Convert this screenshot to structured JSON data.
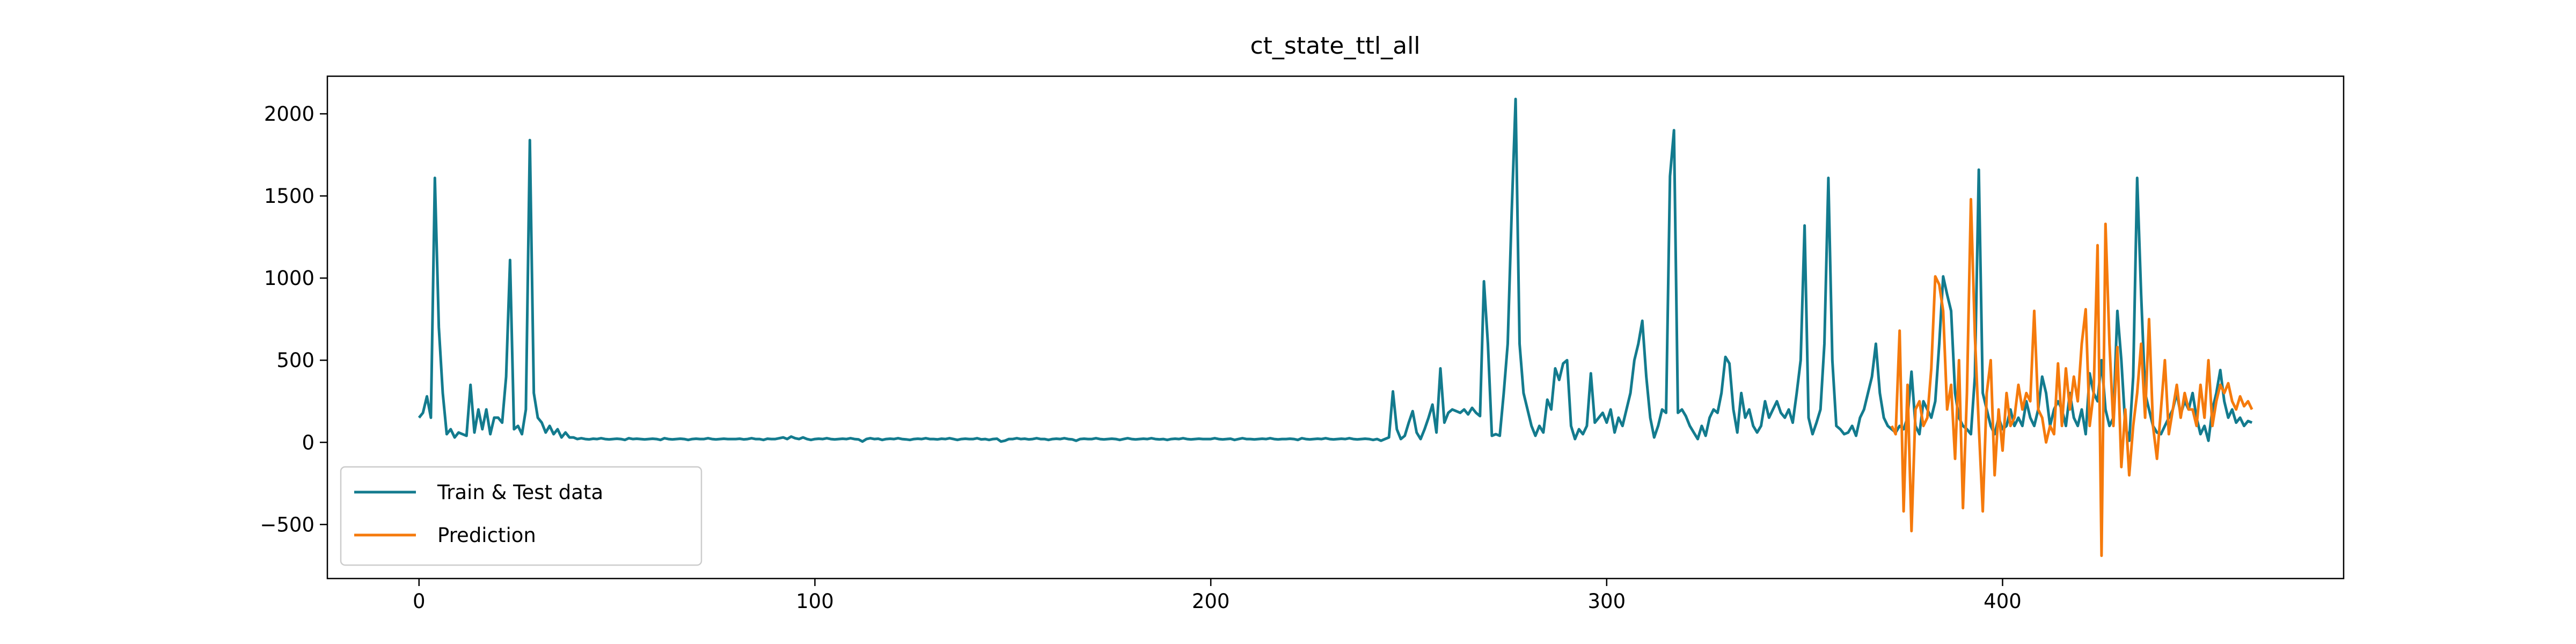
{
  "chart_data": {
    "type": "line",
    "title": "ct_state_ttl_all",
    "xlim": [
      -23.15,
      486.15
    ],
    "ylim": [
      -829,
      2229
    ],
    "xticks": [
      0,
      100,
      200,
      300,
      400
    ],
    "yticks": [
      {
        "value": -500,
        "label": "−500"
      },
      0,
      500,
      1000,
      1500,
      2000
    ],
    "legend": "lower left",
    "series": [
      {
        "name": "Train & Test data",
        "color": "#137b8e",
        "x": [
          0,
          1,
          2,
          3,
          4,
          5,
          6,
          7,
          8,
          9,
          10,
          11,
          12,
          13,
          14,
          15,
          16,
          17,
          18,
          19,
          20,
          21,
          22,
          23,
          24,
          25,
          26,
          27,
          28,
          29,
          30,
          31,
          32,
          33,
          34,
          35,
          36,
          37,
          38,
          39,
          40,
          41,
          42,
          43,
          44,
          45,
          46,
          47,
          48,
          49,
          50,
          51,
          52,
          53,
          54,
          55,
          56,
          57,
          58,
          59,
          60,
          61,
          62,
          63,
          64,
          65,
          66,
          67,
          68,
          69,
          70,
          71,
          72,
          73,
          74,
          75,
          76,
          77,
          78,
          79,
          80,
          81,
          82,
          83,
          84,
          85,
          86,
          87,
          88,
          89,
          90,
          91,
          92,
          93,
          94,
          95,
          96,
          97,
          98,
          99,
          100,
          101,
          102,
          103,
          104,
          105,
          106,
          107,
          108,
          109,
          110,
          111,
          112,
          113,
          114,
          115,
          116,
          117,
          118,
          119,
          120,
          121,
          122,
          123,
          124,
          125,
          126,
          127,
          128,
          129,
          130,
          131,
          132,
          133,
          134,
          135,
          136,
          137,
          138,
          139,
          140,
          141,
          142,
          143,
          144,
          145,
          146,
          147,
          148,
          149,
          150,
          151,
          152,
          153,
          154,
          155,
          156,
          157,
          158,
          159,
          160,
          161,
          162,
          163,
          164,
          165,
          166,
          167,
          168,
          169,
          170,
          171,
          172,
          173,
          174,
          175,
          176,
          177,
          178,
          179,
          180,
          181,
          182,
          183,
          184,
          185,
          186,
          187,
          188,
          189,
          190,
          191,
          192,
          193,
          194,
          195,
          196,
          197,
          198,
          199,
          200,
          201,
          202,
          203,
          204,
          205,
          206,
          207,
          208,
          209,
          210,
          211,
          212,
          213,
          214,
          215,
          216,
          217,
          218,
          219,
          220,
          221,
          222,
          223,
          224,
          225,
          226,
          227,
          228,
          229,
          230,
          231,
          232,
          233,
          234,
          235,
          236,
          237,
          238,
          239,
          240,
          241,
          242,
          243,
          244,
          245,
          246,
          247,
          248,
          249,
          250,
          251,
          252,
          253,
          254,
          255,
          256,
          257,
          258,
          259,
          260,
          261,
          262,
          263,
          264,
          265,
          266,
          267,
          268,
          269,
          270,
          271,
          272,
          273,
          274,
          275,
          276,
          277,
          278,
          279,
          280,
          281,
          282,
          283,
          284,
          285,
          286,
          287,
          288,
          289,
          290,
          291,
          292,
          293,
          294,
          295,
          296,
          297,
          298,
          299,
          300,
          301,
          302,
          303,
          304,
          305,
          306,
          307,
          308,
          309,
          310,
          311,
          312,
          313,
          314,
          315,
          316,
          317,
          318,
          319,
          320,
          321,
          322,
          323,
          324,
          325,
          326,
          327,
          328,
          329,
          330,
          331,
          332,
          333,
          334,
          335,
          336,
          337,
          338,
          339,
          340,
          341,
          342,
          343,
          344,
          345,
          346,
          347,
          348,
          349,
          350,
          351,
          352,
          353,
          354,
          355,
          356,
          357,
          358,
          359,
          360,
          361,
          362,
          363,
          364,
          365,
          366,
          367,
          368,
          369,
          370,
          371,
          372,
          373,
          374,
          375,
          376,
          377,
          378,
          379,
          380,
          381,
          382,
          383,
          384,
          385,
          386,
          387,
          388,
          389,
          390,
          391,
          392,
          393,
          394,
          395,
          396,
          397,
          398,
          399,
          400,
          401,
          402,
          403,
          404,
          405,
          406,
          407,
          408,
          409,
          410,
          411,
          412,
          413,
          414,
          415,
          416,
          417,
          418,
          419,
          420,
          421,
          422,
          423,
          424,
          425,
          426,
          427,
          428,
          429,
          430,
          431,
          432,
          433,
          434,
          435,
          436,
          437,
          438,
          439,
          440,
          441,
          442,
          443,
          444,
          445,
          446,
          447,
          448,
          449,
          450,
          451,
          452,
          453,
          454,
          455,
          456,
          457,
          458,
          459,
          460,
          461,
          462,
          463
        ],
        "values": [
          150,
          180,
          280,
          150,
          1610,
          700,
          300,
          50,
          80,
          30,
          60,
          50,
          40,
          350,
          60,
          200,
          80,
          200,
          50,
          150,
          150,
          120,
          400,
          1110,
          80,
          100,
          50,
          200,
          1840,
          300,
          150,
          120,
          60,
          100,
          50,
          80,
          30,
          60,
          30,
          30,
          20,
          25,
          20,
          18,
          22,
          20,
          25,
          20,
          18,
          20,
          22,
          20,
          15,
          25,
          20,
          22,
          20,
          18,
          20,
          22,
          20,
          15,
          25,
          20,
          18,
          20,
          22,
          20,
          15,
          20,
          22,
          20,
          20,
          25,
          20,
          18,
          20,
          22,
          20,
          20,
          20,
          22,
          18,
          20,
          25,
          20,
          20,
          15,
          22,
          20,
          20,
          25,
          30,
          20,
          35,
          25,
          20,
          30,
          20,
          15,
          20,
          22,
          20,
          25,
          20,
          18,
          20,
          22,
          20,
          25,
          20,
          18,
          5,
          20,
          25,
          20,
          22,
          15,
          20,
          22,
          20,
          25,
          20,
          18,
          15,
          20,
          22,
          20,
          25,
          20,
          20,
          18,
          22,
          20,
          25,
          20,
          15,
          20,
          22,
          20,
          20,
          25,
          18,
          20,
          15,
          20,
          22,
          5,
          10,
          20,
          20,
          25,
          20,
          22,
          18,
          20,
          25,
          20,
          20,
          15,
          20,
          22,
          20,
          25,
          20,
          18,
          10,
          20,
          22,
          20,
          20,
          25,
          20,
          18,
          20,
          22,
          20,
          15,
          20,
          25,
          20,
          18,
          20,
          22,
          20,
          25,
          20,
          18,
          20,
          15,
          20,
          22,
          20,
          25,
          20,
          18,
          20,
          22,
          20,
          20,
          20,
          25,
          20,
          18,
          20,
          22,
          15,
          20,
          25,
          20,
          20,
          18,
          20,
          22,
          20,
          25,
          20,
          18,
          20,
          20,
          22,
          20,
          15,
          25,
          20,
          18,
          20,
          22,
          20,
          25,
          20,
          18,
          20,
          22,
          20,
          25,
          20,
          18,
          20,
          22,
          20,
          15,
          20,
          10,
          20,
          30,
          310,
          80,
          20,
          40,
          120,
          190,
          60,
          20,
          80,
          150,
          230,
          60,
          450,
          120,
          180,
          200,
          190,
          180,
          200,
          170,
          210,
          180,
          160,
          980,
          600,
          40,
          50,
          40,
          300,
          600,
          1400,
          2090,
          600,
          300,
          200,
          100,
          40,
          100,
          60,
          260,
          200,
          450,
          380,
          480,
          500,
          100,
          20,
          80,
          50,
          100,
          420,
          120,
          150,
          180,
          120,
          200,
          60,
          150,
          100,
          200,
          300,
          500,
          600,
          740,
          400,
          150,
          30,
          100,
          200,
          180,
          1620,
          1900,
          180,
          200,
          160,
          100,
          60,
          20,
          100,
          40,
          150,
          200,
          180,
          300,
          520,
          480,
          200,
          60,
          300,
          150,
          200,
          100,
          60,
          100,
          250,
          150,
          200,
          250,
          180,
          150,
          200,
          120,
          300,
          500,
          1320,
          150,
          50,
          120,
          200,
          600,
          1610,
          500,
          100,
          80,
          50,
          60,
          100,
          40,
          150,
          200,
          300,
          400,
          600,
          300,
          150,
          100,
          80,
          60,
          100,
          80,
          150,
          430,
          100,
          50,
          250,
          200,
          150,
          250,
          600,
          1010,
          900,
          800,
          300,
          150,
          100,
          80,
          50,
          400,
          1660,
          300,
          200,
          100,
          50,
          150,
          80,
          100,
          200,
          100,
          150,
          100,
          250,
          150,
          100,
          200,
          400,
          300,
          100,
          200,
          250,
          200,
          100,
          300,
          150,
          100,
          200,
          50,
          420,
          300,
          250,
          500,
          200,
          100,
          150,
          800,
          500,
          100,
          10,
          400,
          1610,
          900,
          300,
          200,
          100,
          60,
          50,
          100,
          150,
          200,
          300,
          170,
          250,
          200,
          300,
          150,
          50,
          100,
          10,
          200,
          300,
          440,
          250,
          150,
          200,
          120,
          150,
          100,
          130,
          120
        ]
      },
      {
        "name": "Prediction",
        "color": "#f57a0c",
        "x": [
          372,
          373,
          374,
          375,
          376,
          377,
          378,
          379,
          380,
          381,
          382,
          383,
          384,
          385,
          386,
          387,
          388,
          389,
          390,
          391,
          392,
          393,
          394,
          395,
          396,
          397,
          398,
          399,
          400,
          401,
          402,
          403,
          404,
          405,
          406,
          407,
          408,
          409,
          410,
          411,
          412,
          413,
          414,
          415,
          416,
          417,
          418,
          419,
          420,
          421,
          422,
          423,
          424,
          425,
          426,
          427,
          428,
          429,
          430,
          431,
          432,
          433,
          434,
          435,
          436,
          437,
          438,
          439,
          440,
          441,
          442,
          443,
          444,
          445,
          446,
          447,
          448,
          449,
          450,
          451,
          452,
          453,
          454,
          455,
          456,
          457,
          458,
          459,
          460,
          461,
          462,
          463
        ],
        "values": [
          100,
          50,
          680,
          -420,
          350,
          -540,
          200,
          250,
          100,
          150,
          450,
          1010,
          960,
          800,
          200,
          350,
          -100,
          500,
          -400,
          300,
          1480,
          650,
          100,
          -420,
          300,
          500,
          -200,
          200,
          -50,
          300,
          100,
          150,
          350,
          200,
          300,
          250,
          800,
          200,
          150,
          0,
          100,
          50,
          480,
          100,
          450,
          200,
          400,
          250,
          600,
          810,
          100,
          300,
          1200,
          -690,
          1330,
          600,
          100,
          580,
          -150,
          200,
          -200,
          100,
          300,
          600,
          150,
          750,
          100,
          -100,
          200,
          500,
          50,
          200,
          350,
          150,
          300,
          200,
          200,
          100,
          350,
          150,
          500,
          100,
          250,
          350,
          300,
          360,
          250,
          200,
          280,
          220,
          250,
          200
        ]
      }
    ]
  }
}
